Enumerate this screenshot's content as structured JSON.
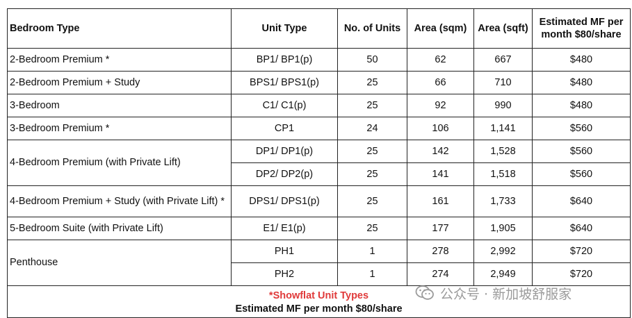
{
  "table": {
    "headers": {
      "bedroom_type": "Bedroom Type",
      "unit_type": "Unit Type",
      "no_of_units": "No. of Units",
      "area_sqm": "Area (sqm)",
      "area_sqft": "Area (sqft)",
      "estimated_mf": "Estimated MF per month $80/share"
    },
    "rows": [
      {
        "bedroom_type": "2-Bedroom Premium *",
        "unit_type": "BP1/ BP1(p)",
        "units": "50",
        "sqm": "62",
        "sqft": "667",
        "mf": "$480"
      },
      {
        "bedroom_type": "2-Bedroom Premium + Study",
        "unit_type": "BPS1/ BPS1(p)",
        "units": "25",
        "sqm": "66",
        "sqft": "710",
        "mf": "$480"
      },
      {
        "bedroom_type": "3-Bedroom",
        "unit_type": "C1/ C1(p)",
        "units": "25",
        "sqm": "92",
        "sqft": "990",
        "mf": "$480"
      },
      {
        "bedroom_type": "3-Bedroom Premium *",
        "unit_type": "CP1",
        "units": "24",
        "sqm": "106",
        "sqft": "1,141",
        "mf": "$560"
      },
      {
        "bedroom_type": "4-Bedroom Premium (with Private Lift)",
        "unit_type": "DP1/ DP1(p)",
        "units": "25",
        "sqm": "142",
        "sqft": "1,528",
        "mf": "$560"
      },
      {
        "bedroom_type": "",
        "unit_type": "DP2/ DP2(p)",
        "units": "25",
        "sqm": "141",
        "sqft": "1,518",
        "mf": "$560"
      },
      {
        "bedroom_type": "4-Bedroom Premium + Study (with Private Lift) *",
        "unit_type": "DPS1/ DPS1(p)",
        "units": "25",
        "sqm": "161",
        "sqft": "1,733",
        "mf": "$640"
      },
      {
        "bedroom_type": "5-Bedroom Suite (with Private Lift)",
        "unit_type": "E1/ E1(p)",
        "units": "25",
        "sqm": "177",
        "sqft": "1,905",
        "mf": "$640"
      },
      {
        "bedroom_type": "Penthouse",
        "unit_type": "PH1",
        "units": "1",
        "sqm": "278",
        "sqft": "2,992",
        "mf": "$720"
      },
      {
        "bedroom_type": "",
        "unit_type": "PH2",
        "units": "1",
        "sqm": "274",
        "sqft": "2,949",
        "mf": "$720"
      }
    ],
    "footer": {
      "note": "*Showflat Unit Types",
      "mf_line": "Estimated MF per month $80/share"
    }
  },
  "watermark": {
    "text": "公众号 · 新加坡舒服家",
    "icon": "wechat-icon"
  },
  "colors": {
    "border": "#222222",
    "note_red": "#e03a3a",
    "watermark_gray": "#8a8a8a"
  }
}
